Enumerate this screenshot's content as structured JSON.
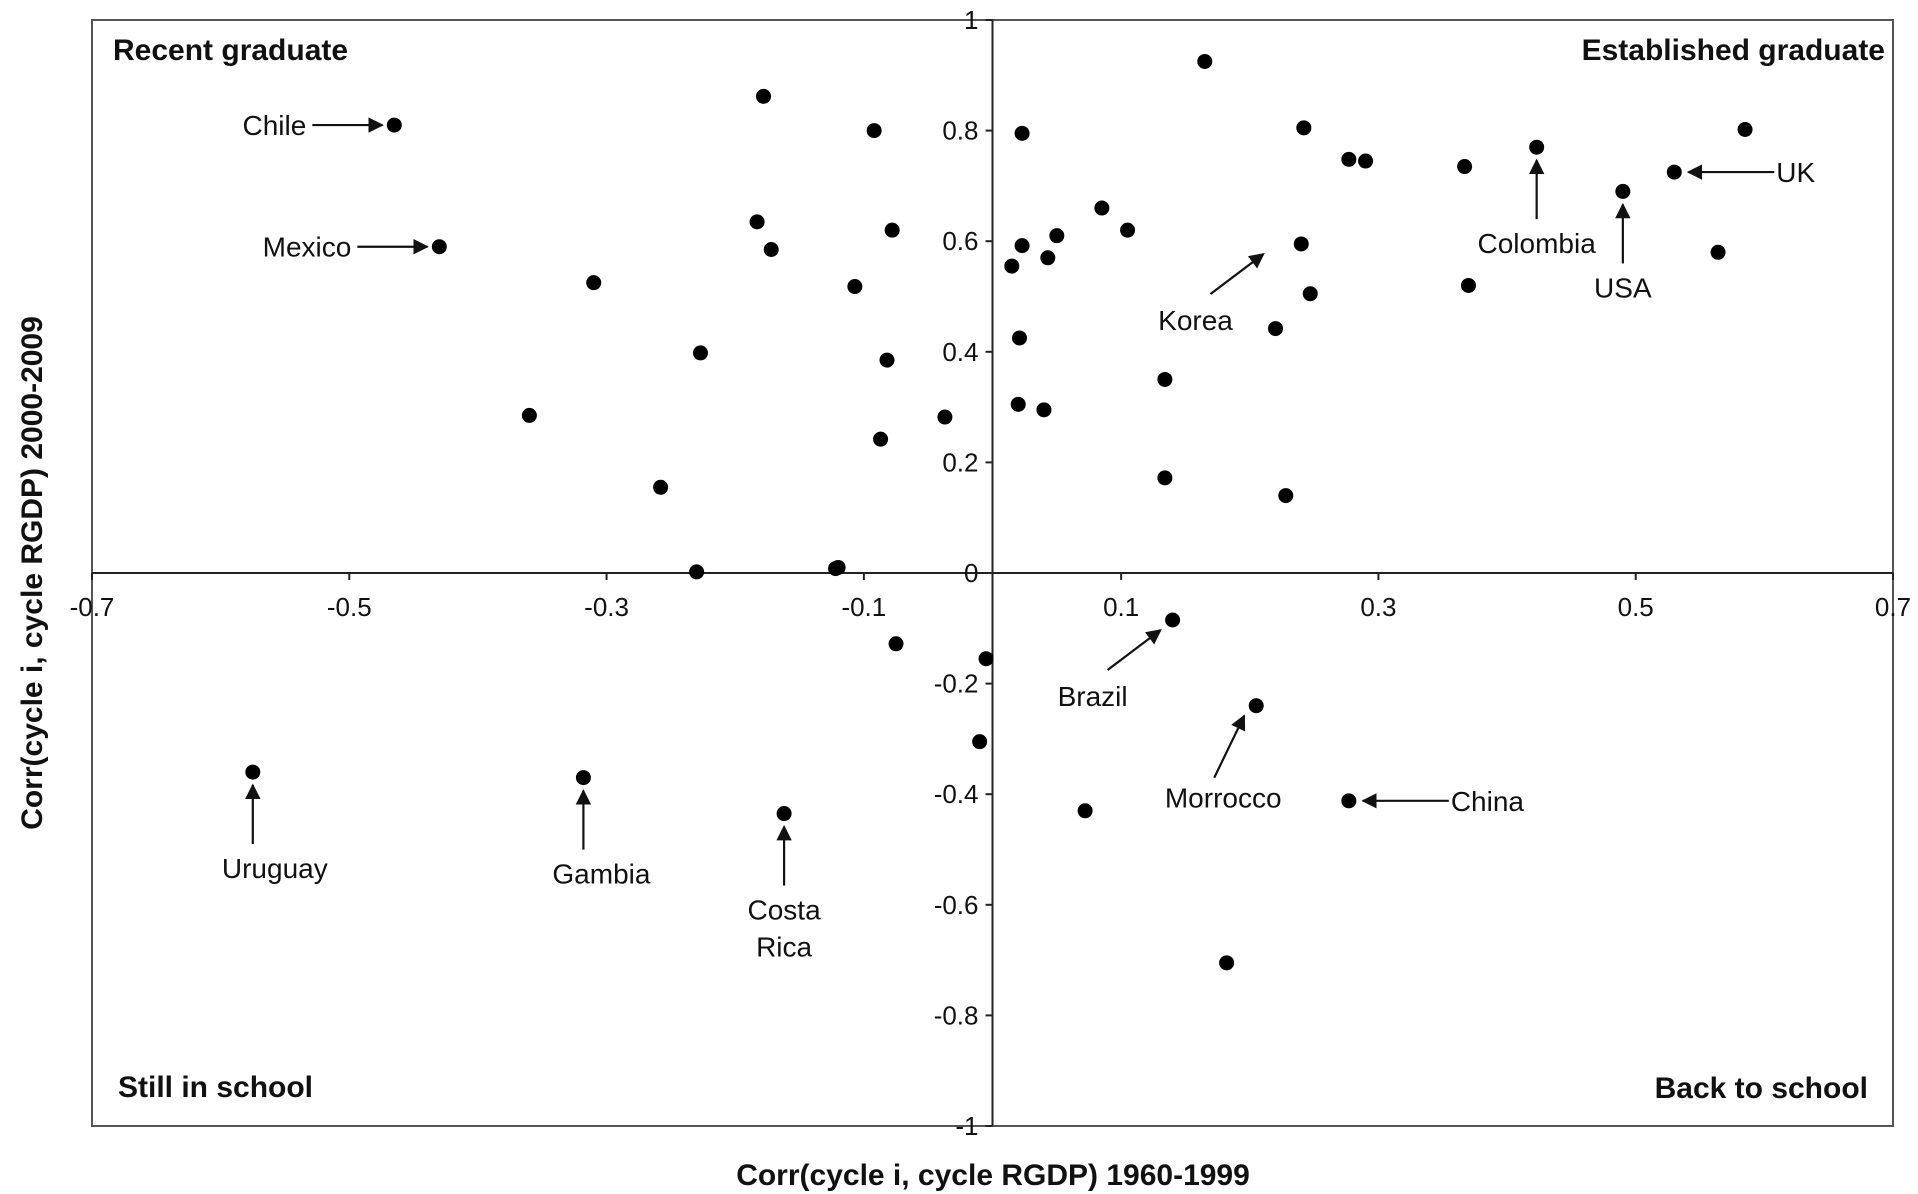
{
  "chart_data": {
    "type": "scatter",
    "xlabel": "Corr(cycle i, cycle RGDP) 1960-1999",
    "ylabel": "Corr(cycle i, cycle RGDP) 2000-2009",
    "xlim": [
      -0.7,
      0.7
    ],
    "ylim": [
      -1,
      1
    ],
    "x_ticks": [
      -0.7,
      -0.5,
      -0.3,
      -0.1,
      0.1,
      0.3,
      0.5,
      0.7
    ],
    "x_tick_labels": [
      "-0.7",
      "-0.5",
      "-0.3",
      "-0.1",
      "0.1",
      "0.3",
      "0.5",
      "0.7"
    ],
    "y_ticks": [
      1,
      0.8,
      0.6,
      0.4,
      0.2,
      0,
      -0.2,
      -0.4,
      -0.6,
      -0.8,
      -1
    ],
    "y_tick_labels": [
      "1",
      "0.8",
      "0.6",
      "0.4",
      "0.2",
      "0",
      "-0.2",
      "-0.4",
      "-0.6",
      "-0.8",
      "-1"
    ],
    "axes_cross_at_origin": true,
    "grid": false,
    "quadrant_labels": {
      "top_left": "Recent graduate",
      "top_right": "Established graduate",
      "bottom_left": "Still in school",
      "bottom_right": "Back to school"
    },
    "points": [
      {
        "x": 0.165,
        "y": 0.925
      },
      {
        "x": -0.178,
        "y": 0.862
      },
      {
        "x": -0.465,
        "y": 0.81
      },
      {
        "x": 0.585,
        "y": 0.802
      },
      {
        "x": -0.092,
        "y": 0.8
      },
      {
        "x": 0.242,
        "y": 0.805
      },
      {
        "x": 0.023,
        "y": 0.795
      },
      {
        "x": 0.277,
        "y": 0.748
      },
      {
        "x": 0.29,
        "y": 0.745
      },
      {
        "x": 0.423,
        "y": 0.77
      },
      {
        "x": 0.367,
        "y": 0.735
      },
      {
        "x": 0.53,
        "y": 0.725
      },
      {
        "x": 0.49,
        "y": 0.69
      },
      {
        "x": 0.085,
        "y": 0.66
      },
      {
        "x": -0.183,
        "y": 0.635
      },
      {
        "x": -0.078,
        "y": 0.62
      },
      {
        "x": 0.105,
        "y": 0.62
      },
      {
        "x": 0.05,
        "y": 0.61
      },
      {
        "x": 0.023,
        "y": 0.592
      },
      {
        "x": -0.43,
        "y": 0.59
      },
      {
        "x": -0.172,
        "y": 0.585
      },
      {
        "x": 0.24,
        "y": 0.595
      },
      {
        "x": 0.564,
        "y": 0.58
      },
      {
        "x": 0.043,
        "y": 0.57
      },
      {
        "x": 0.015,
        "y": 0.555
      },
      {
        "x": -0.31,
        "y": 0.525
      },
      {
        "x": -0.107,
        "y": 0.518
      },
      {
        "x": 0.37,
        "y": 0.52
      },
      {
        "x": 0.247,
        "y": 0.505
      },
      {
        "x": 0.22,
        "y": 0.442
      },
      {
        "x": 0.021,
        "y": 0.425
      },
      {
        "x": -0.227,
        "y": 0.398
      },
      {
        "x": -0.082,
        "y": 0.385
      },
      {
        "x": 0.134,
        "y": 0.35
      },
      {
        "x": 0.02,
        "y": 0.305
      },
      {
        "x": 0.04,
        "y": 0.295
      },
      {
        "x": -0.36,
        "y": 0.285
      },
      {
        "x": -0.037,
        "y": 0.282
      },
      {
        "x": -0.087,
        "y": 0.242
      },
      {
        "x": 0.134,
        "y": 0.172
      },
      {
        "x": -0.258,
        "y": 0.155
      },
      {
        "x": 0.228,
        "y": 0.14
      },
      {
        "x": -0.23,
        "y": 0.002
      },
      {
        "x": -0.122,
        "y": 0.008
      },
      {
        "x": -0.12,
        "y": 0.01
      },
      {
        "x": -0.075,
        "y": -0.128
      },
      {
        "x": -0.005,
        "y": -0.155
      },
      {
        "x": 0.14,
        "y": -0.085
      },
      {
        "x": -0.01,
        "y": -0.305
      },
      {
        "x": 0.205,
        "y": -0.24
      },
      {
        "x": -0.575,
        "y": -0.36
      },
      {
        "x": -0.318,
        "y": -0.37
      },
      {
        "x": -0.162,
        "y": -0.435
      },
      {
        "x": 0.072,
        "y": -0.43
      },
      {
        "x": 0.277,
        "y": -0.412
      },
      {
        "x": 0.182,
        "y": -0.705
      }
    ],
    "annotations": [
      {
        "lines": [
          "Chile"
        ],
        "point": [
          -0.465,
          0.81
        ],
        "dir": "left"
      },
      {
        "lines": [
          "Mexico"
        ],
        "point": [
          -0.43,
          0.59
        ],
        "dir": "left"
      },
      {
        "lines": [
          "UK"
        ],
        "point": [
          0.53,
          0.725
        ],
        "dir": "right"
      },
      {
        "lines": [
          "Colombia"
        ],
        "point": [
          0.423,
          0.77
        ],
        "dir": "below"
      },
      {
        "lines": [
          "USA"
        ],
        "point": [
          0.49,
          0.69
        ],
        "dir": "below"
      },
      {
        "lines": [
          "Korea"
        ],
        "point": [
          0.22,
          0.595
        ],
        "dir": "below-left"
      },
      {
        "lines": [
          "Brazil"
        ],
        "point": [
          0.14,
          -0.085
        ],
        "dir": "below-left"
      },
      {
        "lines": [
          "Morrocco"
        ],
        "point": [
          0.205,
          -0.24
        ],
        "dir": "below-left"
      },
      {
        "lines": [
          "China"
        ],
        "point": [
          0.277,
          -0.412
        ],
        "dir": "right"
      },
      {
        "lines": [
          "Uruguay"
        ],
        "point": [
          -0.575,
          -0.36
        ],
        "dir": "below"
      },
      {
        "lines": [
          "Gambia"
        ],
        "point": [
          -0.318,
          -0.37
        ],
        "dir": "below"
      },
      {
        "lines": [
          "Costa",
          "Rica"
        ],
        "point": [
          -0.162,
          -0.435
        ],
        "dir": "below"
      }
    ]
  }
}
